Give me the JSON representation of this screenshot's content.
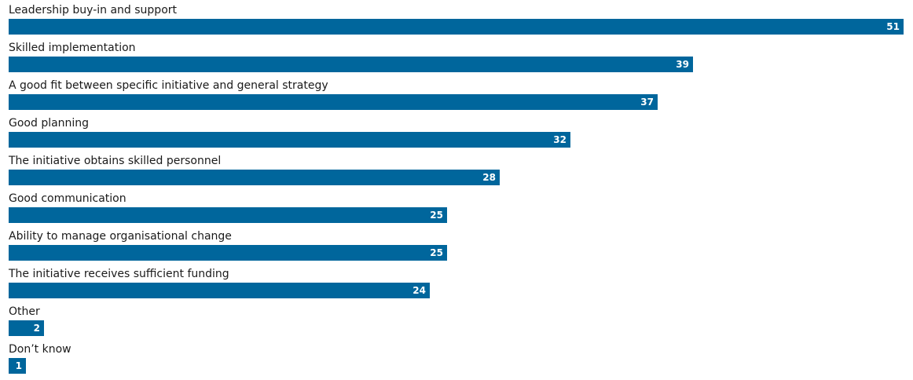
{
  "colors": {
    "bar": "#00669c",
    "label_text": "#1a1a1a",
    "value_text": "#ffffff"
  },
  "chart_data": {
    "type": "bar",
    "orientation": "horizontal",
    "categories": [
      "Leadership buy-in and support",
      "Skilled implementation",
      "A good fit between specific initiative and general strategy",
      "Good planning",
      "The initiative obtains skilled personnel",
      "Good communication",
      "Ability to manage organisational change",
      "The initiative receives sufficient funding",
      "Other",
      "Don’t know"
    ],
    "values": [
      51,
      39,
      37,
      32,
      28,
      25,
      25,
      24,
      2,
      1
    ],
    "value_labels": [
      "51",
      "39",
      "37",
      "32",
      "28",
      "25",
      "25",
      "24",
      "2",
      "1"
    ],
    "title": "",
    "xlabel": "",
    "ylabel": "",
    "xlim": [
      0,
      51
    ],
    "grid": false,
    "legend": "none"
  }
}
